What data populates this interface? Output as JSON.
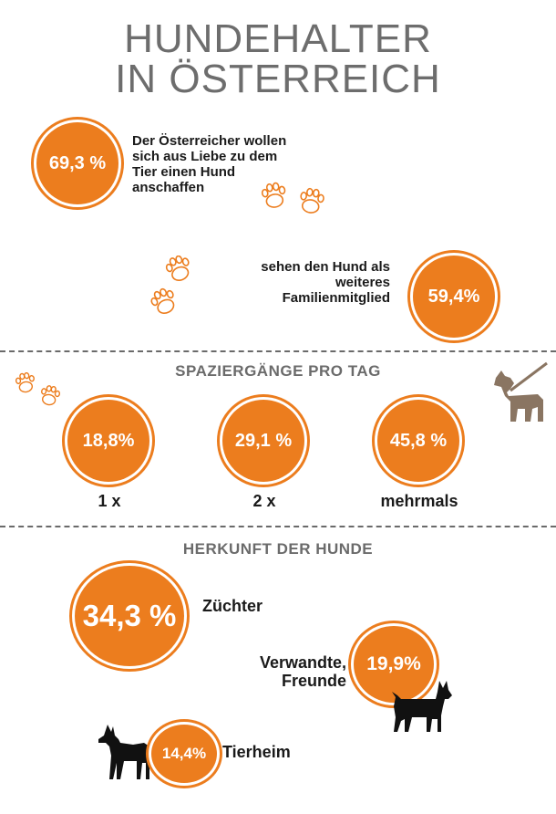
{
  "title": {
    "line1": "HUNDEHALTER",
    "line2": "IN ÖSTERREICH"
  },
  "stats_intro": [
    {
      "value": "69,3 %",
      "text": "Der Österreicher wollen sich aus Liebe zu dem Tier einen Hund anschaffen"
    },
    {
      "value": "59,4%",
      "text": "sehen den Hund als weiteres Familienmitglied"
    }
  ],
  "walks": {
    "heading": "SPAZIERGÄNGE PRO TAG",
    "items": [
      {
        "value": "18,8%",
        "label": "1 x"
      },
      {
        "value": "29,1 %",
        "label": "2 x"
      },
      {
        "value": "45,8 %",
        "label": "mehrmals"
      }
    ]
  },
  "origin": {
    "heading": "HERKUNFT DER HUNDE",
    "items": [
      {
        "value": "34,3 %",
        "label": "Züchter"
      },
      {
        "value": "19,9%",
        "label_line1": "Verwandte,",
        "label_line2": "Freunde"
      },
      {
        "value": "14,4%",
        "label": "Tierheim"
      }
    ]
  },
  "colors": {
    "accent": "#ec7d1e",
    "brown": "#8a7562",
    "title_grey": "#6d6d6d"
  },
  "icons": [
    "paw-prints-icon",
    "dog-on-leash-icon",
    "small-dog-icon",
    "doberman-icon"
  ]
}
